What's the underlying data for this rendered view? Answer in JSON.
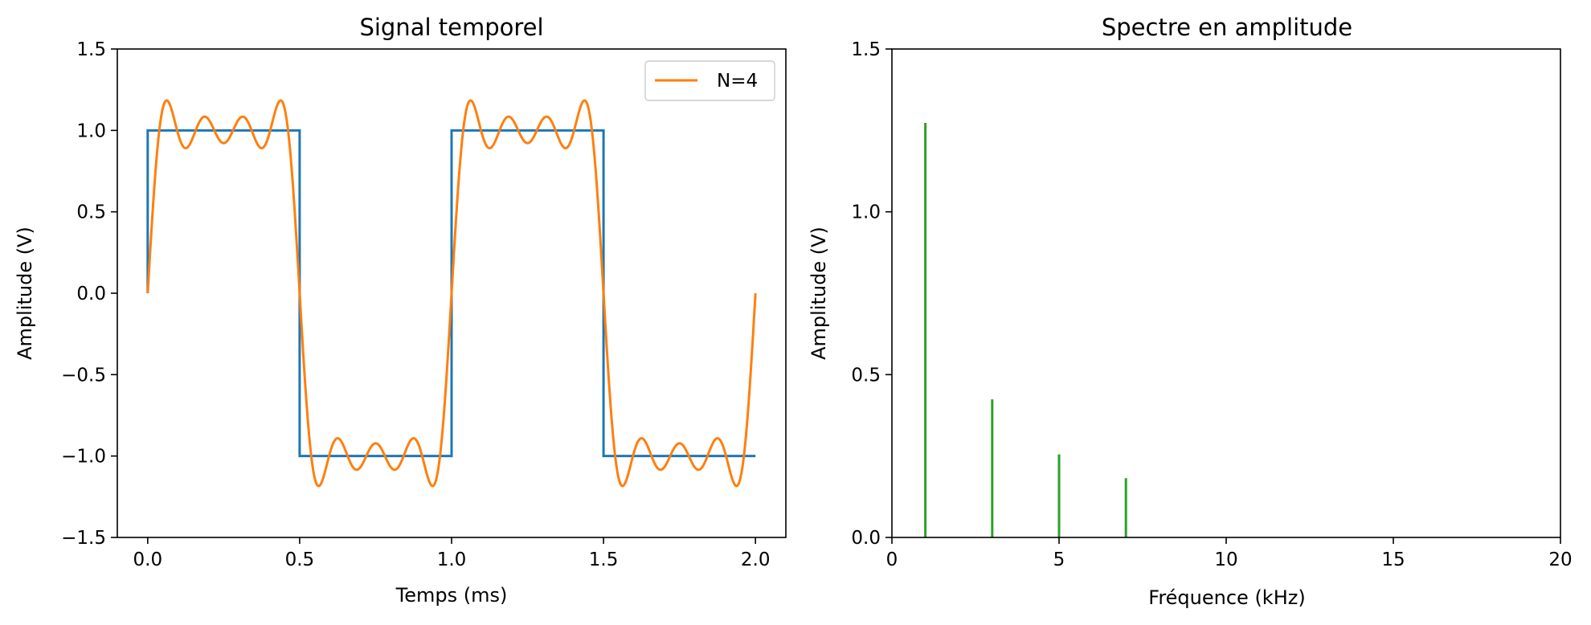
{
  "chart_data": [
    {
      "type": "line",
      "title": "Signal temporel",
      "xlabel": "Temps (ms)",
      "ylabel": "Amplitude (V)",
      "xlim": [
        -0.1,
        2.1
      ],
      "ylim": [
        -1.5,
        1.5
      ],
      "xticks": [
        0.0,
        0.5,
        1.0,
        1.5,
        2.0
      ],
      "xtick_labels": [
        "0.0",
        "0.5",
        "1.0",
        "1.5",
        "2.0"
      ],
      "yticks": [
        -1.5,
        -1.0,
        -0.5,
        0.0,
        0.5,
        1.0,
        1.5
      ],
      "ytick_labels": [
        "−1.5",
        "−1.0",
        "−0.5",
        "0.0",
        "0.5",
        "1.0",
        "1.5"
      ],
      "grid": false,
      "legend_position": "top-right",
      "series": [
        {
          "color": "#1f77b4",
          "x": [
            0.0,
            0.0,
            0.5,
            0.5,
            1.0,
            1.0,
            1.5,
            1.5,
            2.0
          ],
          "y": [
            0.0,
            1.0,
            1.0,
            -1.0,
            -1.0,
            1.0,
            1.0,
            -1.0,
            -1.0
          ]
        },
        {
          "name": "N=4",
          "color": "#ff7f0e",
          "x_start": 0.0,
          "x_end": 2.0,
          "harmonics": [
            1,
            3,
            5,
            7
          ],
          "amplitudes": [
            1.273,
            0.424,
            0.255,
            0.182
          ]
        }
      ]
    },
    {
      "type": "bar",
      "title": "Spectre en amplitude",
      "xlabel": "Fréquence (kHz)",
      "ylabel": "Amplitude (V)",
      "xlim": [
        0,
        20
      ],
      "ylim": [
        0,
        1.5
      ],
      "xticks": [
        0,
        5,
        10,
        15,
        20
      ],
      "xtick_labels": [
        "0",
        "5",
        "10",
        "15",
        "20"
      ],
      "yticks": [
        0.0,
        0.5,
        1.0,
        1.5
      ],
      "ytick_labels": [
        "0.0",
        "0.5",
        "1.0",
        "1.5"
      ],
      "grid": false,
      "color": "#2ca02c",
      "x": [
        1,
        3,
        5,
        7
      ],
      "values": [
        1.273,
        0.424,
        0.255,
        0.182
      ]
    }
  ]
}
